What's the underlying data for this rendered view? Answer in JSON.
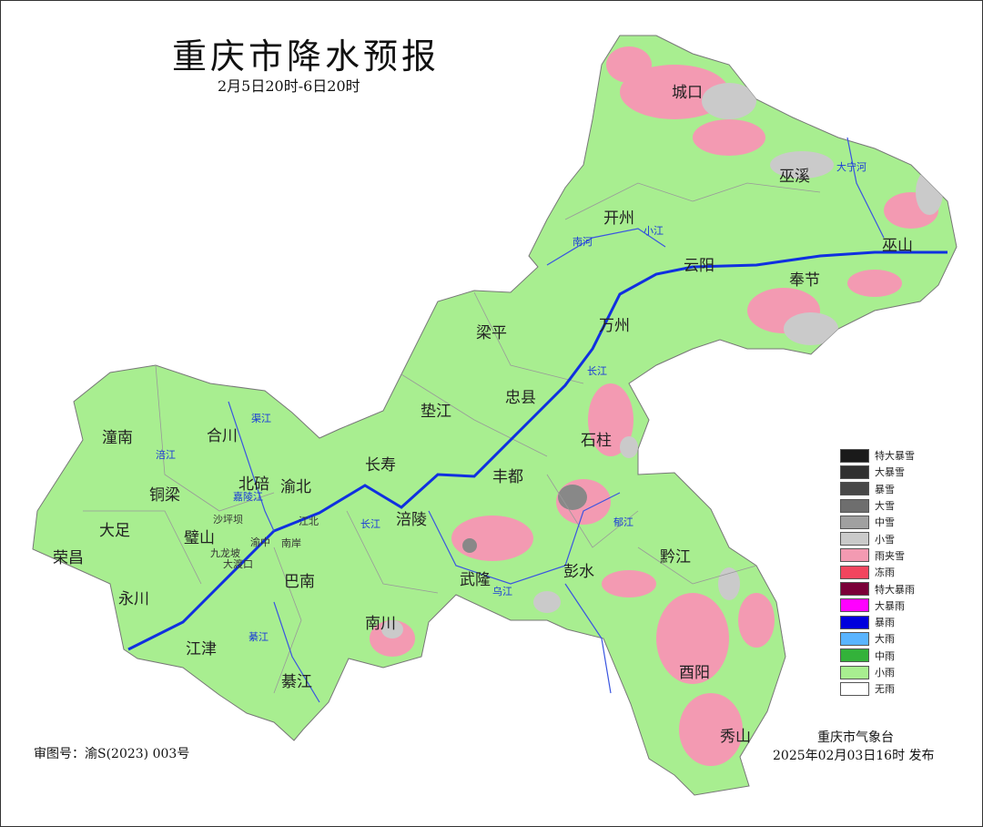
{
  "header": {
    "title": "重庆市降水预报",
    "subtitle": "2月5日20时-6日20时"
  },
  "cities": [
    {
      "name": "城口"
    },
    {
      "name": "巫溪"
    },
    {
      "name": "开州"
    },
    {
      "name": "云阳"
    },
    {
      "name": "巫山"
    },
    {
      "name": "奉节"
    },
    {
      "name": "万州"
    },
    {
      "name": "梁平"
    },
    {
      "name": "忠县"
    },
    {
      "name": "垫江"
    },
    {
      "name": "石柱"
    },
    {
      "name": "长寿"
    },
    {
      "name": "丰都"
    },
    {
      "name": "涪陵"
    },
    {
      "name": "合川"
    },
    {
      "name": "潼南"
    },
    {
      "name": "铜梁"
    },
    {
      "name": "北碚"
    },
    {
      "name": "渝北"
    },
    {
      "name": "大足"
    },
    {
      "name": "璧山"
    },
    {
      "name": "荣昌"
    },
    {
      "name": "永川"
    },
    {
      "name": "巴南"
    },
    {
      "name": "江津"
    },
    {
      "name": "綦江"
    },
    {
      "name": "南川"
    },
    {
      "name": "武隆"
    },
    {
      "name": "彭水"
    },
    {
      "name": "黔江"
    },
    {
      "name": "酉阳"
    },
    {
      "name": "秀山"
    }
  ],
  "districts_small": [
    "沙坪坝",
    "江北",
    "渝中",
    "南岸",
    "九龙坡",
    "大渡口"
  ],
  "rivers": [
    "大宁河",
    "南河",
    "小江",
    "长江",
    "嘉陵江",
    "涪江",
    "渠江",
    "长江",
    "乌江",
    "郁江",
    "綦江"
  ],
  "legend": [
    {
      "label": "特大暴雪",
      "color": "#1a1a1a"
    },
    {
      "label": "大暴雪",
      "color": "#303030"
    },
    {
      "label": "暴雪",
      "color": "#484848"
    },
    {
      "label": "大雪",
      "color": "#6e6e6e"
    },
    {
      "label": "中雪",
      "color": "#a0a0a0"
    },
    {
      "label": "小雪",
      "color": "#cacaca"
    },
    {
      "label": "雨夹雪",
      "color": "#f39ab2"
    },
    {
      "label": "冻雨",
      "color": "#f2455e"
    },
    {
      "label": "特大暴雨",
      "color": "#7a0038"
    },
    {
      "label": "大暴雨",
      "color": "#ff00ff"
    },
    {
      "label": "暴雨",
      "color": "#0000dd"
    },
    {
      "label": "大雨",
      "color": "#5ab4ff"
    },
    {
      "label": "中雨",
      "color": "#33b23a"
    },
    {
      "label": "小雨",
      "color": "#a8ee90"
    },
    {
      "label": "无雨",
      "color": "#ffffff"
    }
  ],
  "footer": {
    "review_number": "审图号：渝S(2023) 003号",
    "issuer": "重庆市气象台",
    "issued": "2025年02月03日16时 发布"
  }
}
